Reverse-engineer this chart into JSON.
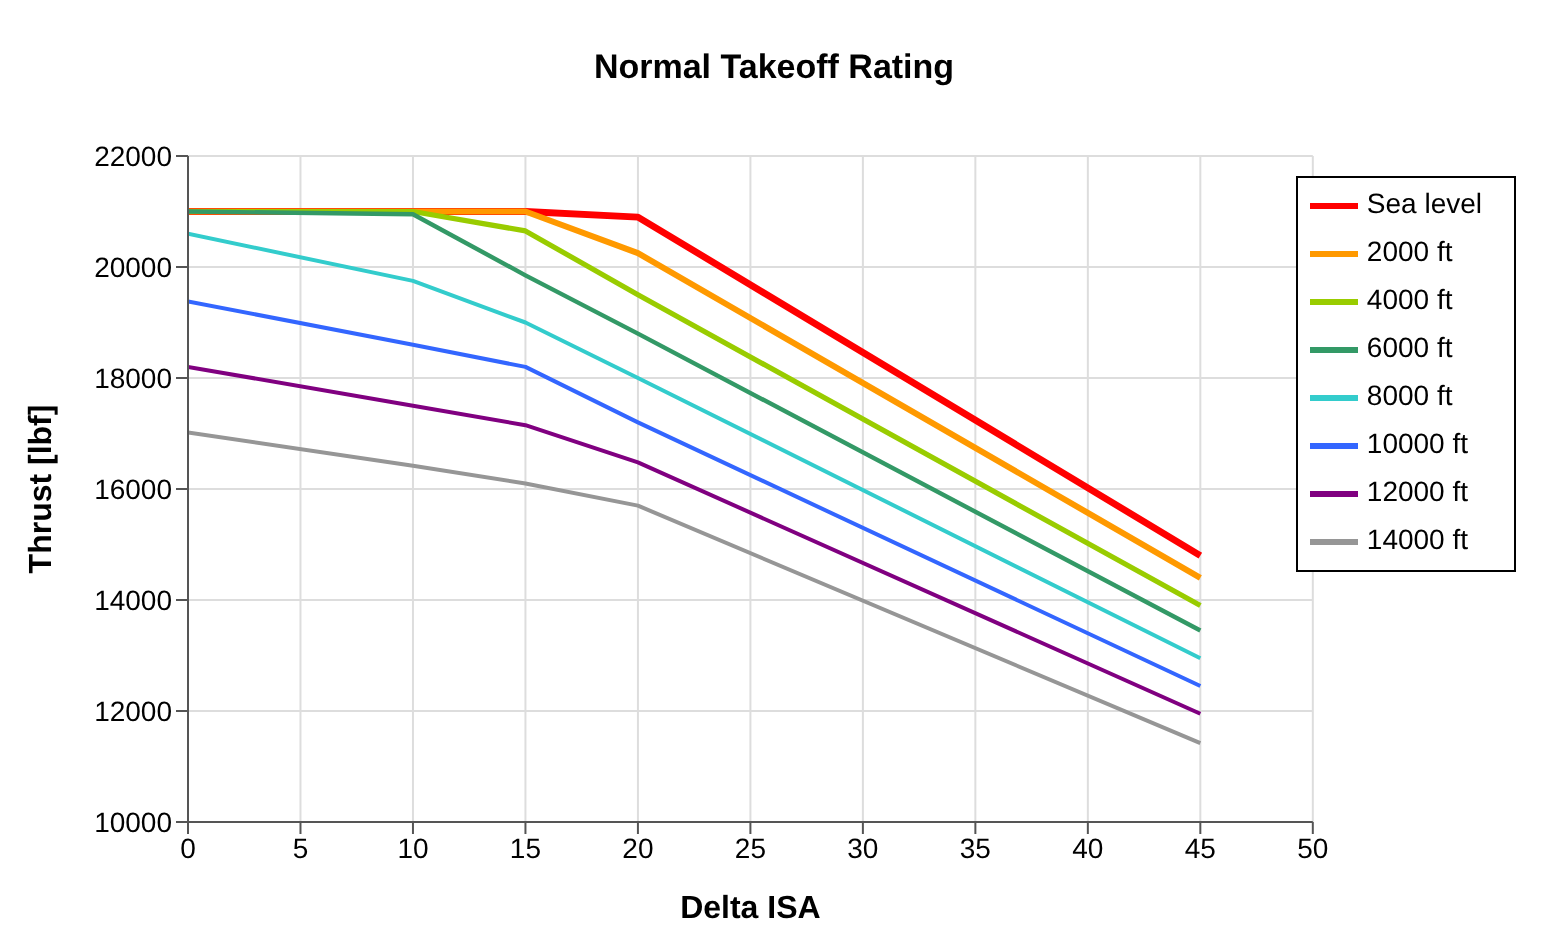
{
  "chart_data": {
    "type": "line",
    "title": "Normal Takeoff Rating",
    "xlabel": "Delta ISA",
    "ylabel": "Thrust [lbf]",
    "x": [
      0,
      10,
      15,
      20,
      45
    ],
    "xlim": [
      0,
      50
    ],
    "xticks": [
      0,
      5,
      10,
      15,
      20,
      25,
      30,
      35,
      40,
      45,
      50
    ],
    "ylim": [
      10000,
      22000
    ],
    "yticks": [
      10000,
      12000,
      14000,
      16000,
      18000,
      20000,
      22000
    ],
    "grid": true,
    "legend": "top right",
    "marker": "none",
    "line_style": "solid",
    "series": [
      {
        "name": "Sea level",
        "color": "#ff0000",
        "values": [
          21000,
          21000,
          21000,
          20900,
          14800
        ]
      },
      {
        "name": "2000 ft",
        "color": "#ff9900",
        "values": [
          21000,
          21000,
          21000,
          20250,
          14400
        ]
      },
      {
        "name": "4000 ft",
        "color": "#99cc00",
        "values": [
          21000,
          21000,
          20650,
          19500,
          13900
        ]
      },
      {
        "name": "6000 ft",
        "color": "#339966",
        "values": [
          21000,
          20950,
          19850,
          18800,
          13450
        ]
      },
      {
        "name": "8000 ft",
        "color": "#33cccc",
        "values": [
          20600,
          19750,
          19000,
          18000,
          12950
        ]
      },
      {
        "name": "10000 ft",
        "color": "#3366ff",
        "values": [
          19380,
          18600,
          18200,
          17200,
          12450
        ]
      },
      {
        "name": "12000 ft",
        "color": "#800080",
        "values": [
          18200,
          17500,
          17150,
          16480,
          11950
        ]
      },
      {
        "name": "14000 ft",
        "color": "#969696",
        "values": [
          17020,
          16420,
          16100,
          15700,
          11420
        ]
      }
    ]
  }
}
